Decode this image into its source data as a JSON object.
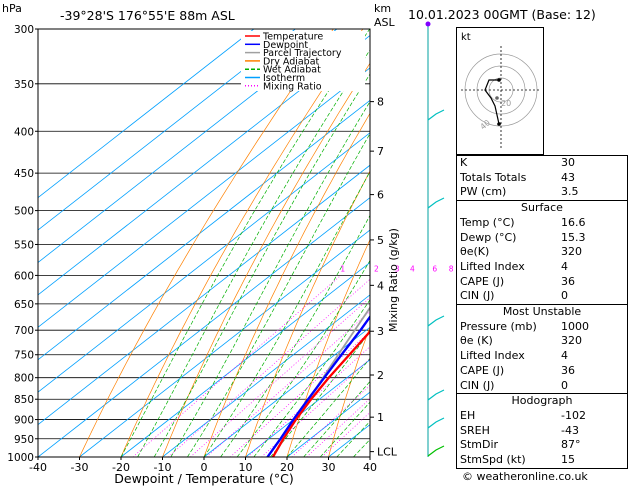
{
  "header": {
    "hpa_label": "hPa",
    "location": "-39°28'S  176°55'E  88m  ASL",
    "km_label": "km",
    "asl_label": "ASL",
    "datetime": "10.01.2023 00GMT (Base: 12)"
  },
  "chart_data": {
    "type": "line",
    "xlabel": "Dewpoint / Temperature (°C)",
    "ylabel": "hPa",
    "mixing_ratio_label": "Mixing Ratio (g/kg)",
    "xlim": [
      -40,
      40
    ],
    "ylim": [
      1000,
      300
    ],
    "x_ticks": [
      "-40",
      "-30",
      "-20",
      "-10",
      "0",
      "10",
      "20",
      "30",
      "40"
    ],
    "pressure_levels": [
      "300",
      "350",
      "400",
      "450",
      "500",
      "550",
      "600",
      "650",
      "700",
      "750",
      "800",
      "850",
      "900",
      "950",
      "1000"
    ],
    "km_ticks": [
      {
        "label": "8",
        "p": 368
      },
      {
        "label": "7",
        "p": 423
      },
      {
        "label": "6",
        "p": 478
      },
      {
        "label": "5",
        "p": 543
      },
      {
        "label": "4",
        "p": 617
      },
      {
        "label": "3",
        "p": 702
      },
      {
        "label": "2",
        "p": 794
      },
      {
        "label": "1",
        "p": 894
      },
      {
        "label": "LCL",
        "p": 985
      }
    ],
    "mixing_ratio_values": [
      "1",
      "2",
      "3",
      "4",
      "6",
      "8",
      "10",
      "16",
      "20",
      "25"
    ],
    "legend": [
      {
        "name": "Temperature",
        "color": "#ff0000"
      },
      {
        "name": "Dewpoint",
        "color": "#0000ff"
      },
      {
        "name": "Parcel Trajectory",
        "color": "#a0a0a0"
      },
      {
        "name": "Dry Adiabat",
        "color": "#ff8000"
      },
      {
        "name": "Wet Adiabat",
        "color": "#00b000"
      },
      {
        "name": "Isotherm",
        "color": "#00a0ff"
      },
      {
        "name": "Mixing Ratio",
        "color": "#ff00ff"
      }
    ],
    "series": [
      {
        "name": "Temperature",
        "points": [
          [
            1000,
            16.6
          ],
          [
            950,
            13.5
          ],
          [
            900,
            10.6
          ],
          [
            850,
            8.0
          ],
          [
            800,
            5.6
          ],
          [
            750,
            3.5
          ],
          [
            700,
            1.2
          ],
          [
            650,
            -2.0
          ],
          [
            600,
            -5.2
          ],
          [
            550,
            -9.0
          ],
          [
            500,
            -13.5
          ],
          [
            450,
            -18.2
          ],
          [
            425,
            -22.0
          ],
          [
            400,
            -25.8
          ],
          [
            350,
            -33.0
          ],
          [
            300,
            -41.0
          ]
        ]
      },
      {
        "name": "Dewpoint",
        "points": [
          [
            1000,
            15.3
          ],
          [
            950,
            12.8
          ],
          [
            900,
            10.0
          ],
          [
            850,
            7.3
          ],
          [
            800,
            4.5
          ],
          [
            750,
            1.6
          ],
          [
            700,
            -1.4
          ],
          [
            650,
            -5.0
          ],
          [
            600,
            -8.6
          ],
          [
            575,
            -12.0
          ],
          [
            550,
            -16.0
          ],
          [
            500,
            -20.5
          ],
          [
            475,
            -21.5
          ],
          [
            450,
            -19.5
          ],
          [
            425,
            -22.5
          ],
          [
            400,
            -26.5
          ],
          [
            350,
            -34.0
          ],
          [
            300,
            -42.0
          ]
        ]
      },
      {
        "name": "Parcel Trajectory",
        "points": [
          [
            1000,
            16.6
          ],
          [
            950,
            13.6
          ],
          [
            900,
            10.6
          ],
          [
            850,
            7.4
          ],
          [
            800,
            4.2
          ],
          [
            750,
            0.8
          ],
          [
            700,
            -2.8
          ],
          [
            650,
            -6.6
          ],
          [
            600,
            -10.8
          ],
          [
            550,
            -15.4
          ],
          [
            500,
            -20.6
          ],
          [
            450,
            -26.4
          ],
          [
            400,
            -33.0
          ],
          [
            350,
            -40.8
          ],
          [
            300,
            -49.8
          ]
        ]
      }
    ]
  },
  "hodograph": {
    "label": "kt",
    "ring_labels": [
      "20",
      "40"
    ]
  },
  "indices": {
    "rows": [
      {
        "label": "K",
        "value": "30"
      },
      {
        "label": "Totals Totals",
        "value": "43"
      },
      {
        "label": "PW (cm)",
        "value": "3.5"
      }
    ]
  },
  "surface": {
    "title": "Surface",
    "rows": [
      {
        "label": "Temp (°C)",
        "value": "16.6"
      },
      {
        "label": "Dewp (°C)",
        "value": "15.3"
      },
      {
        "label": "θe(K)",
        "value": "320"
      },
      {
        "label": "Lifted Index",
        "value": "4"
      },
      {
        "label": "CAPE (J)",
        "value": "36"
      },
      {
        "label": "CIN (J)",
        "value": "0"
      }
    ]
  },
  "most_unstable": {
    "title": "Most Unstable",
    "rows": [
      {
        "label": "Pressure (mb)",
        "value": "1000"
      },
      {
        "label": "θe (K)",
        "value": "320"
      },
      {
        "label": "Lifted Index",
        "value": "4"
      },
      {
        "label": "CAPE (J)",
        "value": "36"
      },
      {
        "label": "CIN (J)",
        "value": "0"
      }
    ]
  },
  "hodograph_table": {
    "title": "Hodograph",
    "rows": [
      {
        "label": "EH",
        "value": "-102"
      },
      {
        "label": "SREH",
        "value": "-43"
      },
      {
        "label": "StmDir",
        "value": "87°"
      },
      {
        "label": "StmSpd (kt)",
        "value": "15"
      }
    ]
  },
  "copyright": "© weatheronline.co.uk"
}
